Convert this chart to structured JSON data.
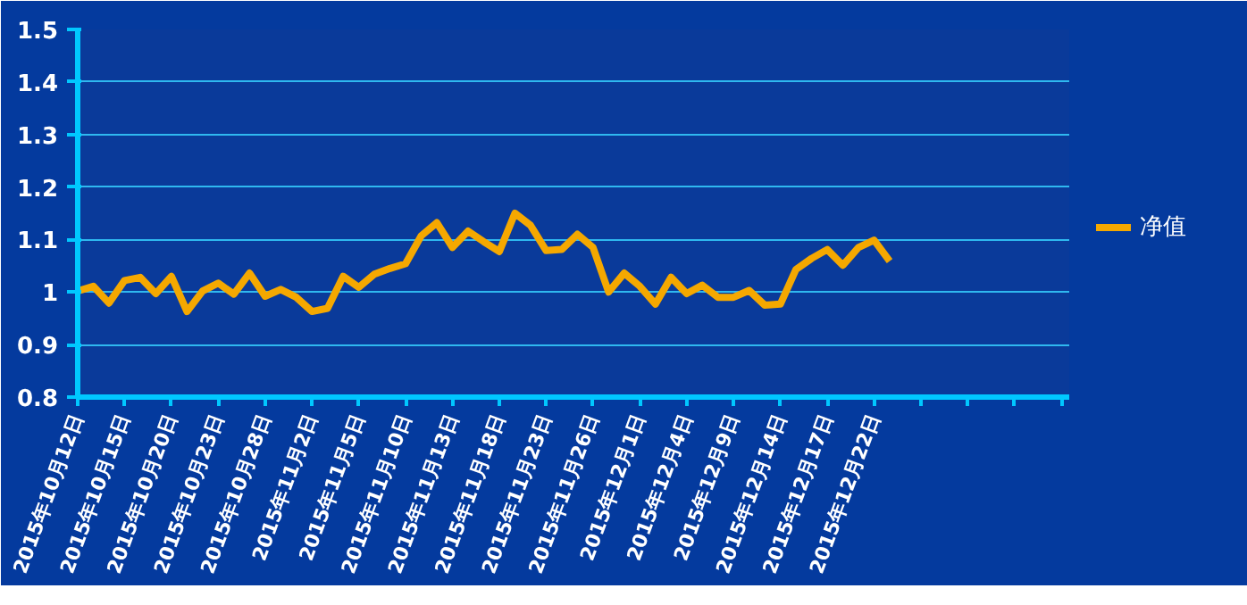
{
  "chart_data": {
    "type": "line",
    "categories": [
      "2015年10月12日",
      null,
      null,
      "2015年10月15日",
      null,
      null,
      "2015年10月20日",
      null,
      null,
      "2015年10月23日",
      null,
      null,
      "2015年10月28日",
      null,
      null,
      "2015年11月2日",
      null,
      null,
      "2015年11月5日",
      null,
      null,
      "2015年11月10日",
      null,
      null,
      "2015年11月13日",
      null,
      null,
      "2015年11月18日",
      null,
      null,
      "2015年11月23日",
      null,
      null,
      "2015年11月26日",
      null,
      null,
      "2015年12月1日",
      null,
      null,
      "2015年12月4日",
      null,
      null,
      "2015年12月9日",
      null,
      null,
      "2015年12月14日",
      null,
      null,
      "2015年12月17日",
      null,
      null,
      "2015年12月22日",
      null,
      null,
      null,
      null,
      null,
      null,
      null,
      null,
      null,
      null,
      null,
      null
    ],
    "series": [
      {
        "name": "净值",
        "color": "#f5a800",
        "values": [
          1.002,
          1.011,
          0.979,
          1.022,
          1.028,
          0.997,
          1.03,
          0.963,
          1.002,
          1.017,
          0.996,
          1.036,
          0.992,
          1.005,
          0.99,
          0.963,
          0.969,
          1.03,
          1.009,
          1.034,
          1.045,
          1.054,
          1.107,
          1.132,
          1.085,
          1.116,
          1.096,
          1.077,
          1.15,
          1.127,
          1.079,
          1.081,
          1.11,
          1.085,
          1.0,
          1.036,
          1.011,
          0.977,
          1.028,
          0.997,
          1.013,
          0.99,
          0.99,
          1.003,
          0.975,
          0.977,
          1.043,
          1.064,
          1.081,
          1.051,
          1.085,
          1.099,
          1.059,
          null,
          null,
          null,
          null,
          null,
          null,
          null,
          null,
          null,
          null,
          null
        ]
      }
    ],
    "ylim": [
      0.8,
      1.5
    ],
    "yticks": [
      0.8,
      0.9,
      1,
      1.1,
      1.2,
      1.3,
      1.4,
      1.5
    ],
    "grid": "y",
    "legend": "right",
    "marker": "none",
    "line_style": "solid"
  }
}
